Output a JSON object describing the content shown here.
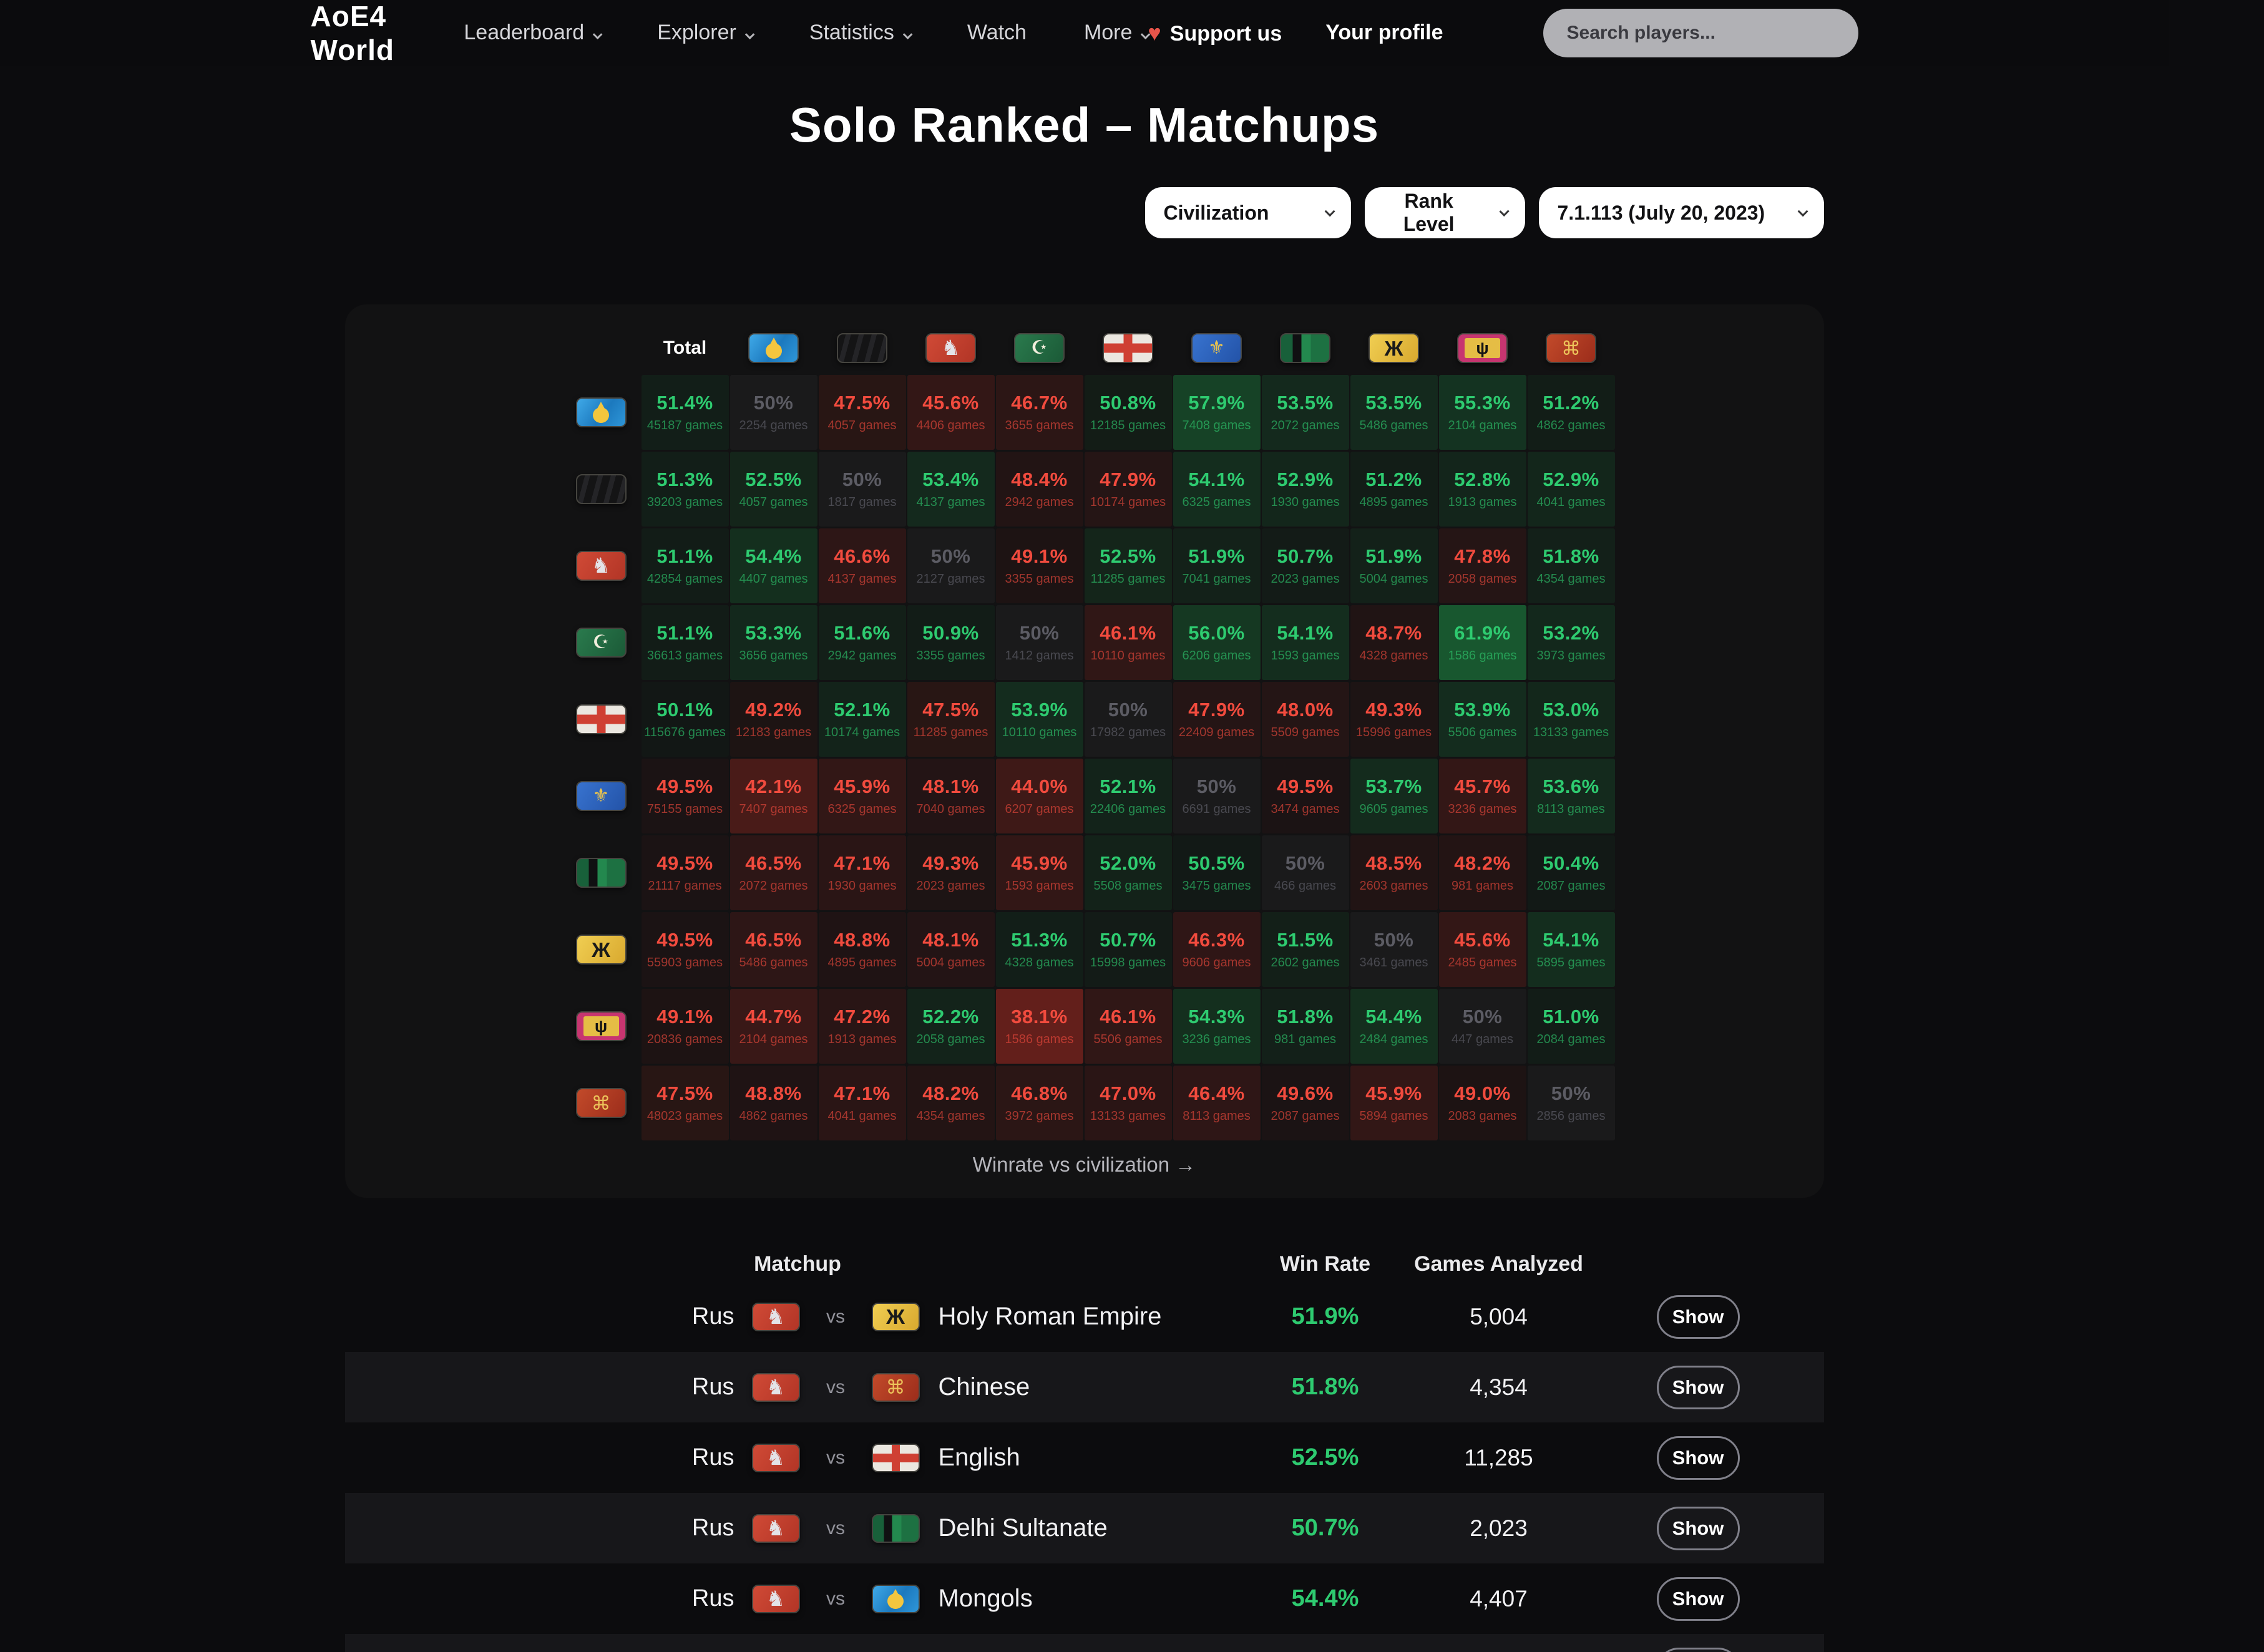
{
  "nav": {
    "brand": "AoE4 World",
    "items": [
      {
        "label": "Leaderboard",
        "caret": true
      },
      {
        "label": "Explorer",
        "caret": true
      },
      {
        "label": "Statistics",
        "caret": true
      },
      {
        "label": "Watch",
        "caret": false
      },
      {
        "label": "More",
        "caret": true
      }
    ],
    "support_label": "Support us",
    "profile_label": "Your profile",
    "search_placeholder": "Search players..."
  },
  "page": {
    "title": "Solo Ranked – Matchups"
  },
  "filters": [
    {
      "label": "Civilization"
    },
    {
      "label": "Rank Level"
    },
    {
      "label": "7.1.113 (July 20, 2023)"
    }
  ],
  "colors": {
    "green": "#2ecb70",
    "red": "#f14b3e",
    "neutral_gray": "#5c5c64"
  },
  "matrix": {
    "corner_label": "Total",
    "civs": [
      {
        "id": "mongols",
        "name": "Mongols"
      },
      {
        "id": "abbasid",
        "name": "Abbasid Dynasty"
      },
      {
        "id": "rus",
        "name": "Rus"
      },
      {
        "id": "ottomans",
        "name": "Ottomans"
      },
      {
        "id": "english",
        "name": "English"
      },
      {
        "id": "french",
        "name": "French"
      },
      {
        "id": "delhi",
        "name": "Delhi Sultanate"
      },
      {
        "id": "hre",
        "name": "Holy Roman Empire"
      },
      {
        "id": "malians",
        "name": "Malians"
      },
      {
        "id": "chinese",
        "name": "Chinese"
      }
    ],
    "rows": [
      {
        "civ": "mongols",
        "total": {
          "wr": "51.4%",
          "games": "45187 games"
        },
        "cells": [
          {
            "wr": "50%",
            "games": "2254 games"
          },
          {
            "wr": "47.5%",
            "games": "4057 games"
          },
          {
            "wr": "45.6%",
            "games": "4406 games"
          },
          {
            "wr": "46.7%",
            "games": "3655 games"
          },
          {
            "wr": "50.8%",
            "games": "12185 games"
          },
          {
            "wr": "57.9%",
            "games": "7408 games"
          },
          {
            "wr": "53.5%",
            "games": "2072 games"
          },
          {
            "wr": "53.5%",
            "games": "5486 games"
          },
          {
            "wr": "55.3%",
            "games": "2104 games"
          },
          {
            "wr": "51.2%",
            "games": "4862 games"
          }
        ]
      },
      {
        "civ": "abbasid",
        "total": {
          "wr": "51.3%",
          "games": "39203 games"
        },
        "cells": [
          {
            "wr": "52.5%",
            "games": "4057 games"
          },
          {
            "wr": "50%",
            "games": "1817 games"
          },
          {
            "wr": "53.4%",
            "games": "4137 games"
          },
          {
            "wr": "48.4%",
            "games": "2942 games"
          },
          {
            "wr": "47.9%",
            "games": "10174 games"
          },
          {
            "wr": "54.1%",
            "games": "6325 games"
          },
          {
            "wr": "52.9%",
            "games": "1930 games"
          },
          {
            "wr": "51.2%",
            "games": "4895 games"
          },
          {
            "wr": "52.8%",
            "games": "1913 games"
          },
          {
            "wr": "52.9%",
            "games": "4041 games"
          }
        ]
      },
      {
        "civ": "rus",
        "total": {
          "wr": "51.1%",
          "games": "42854 games"
        },
        "cells": [
          {
            "wr": "54.4%",
            "games": "4407 games"
          },
          {
            "wr": "46.6%",
            "games": "4137 games"
          },
          {
            "wr": "50%",
            "games": "2127 games"
          },
          {
            "wr": "49.1%",
            "games": "3355 games"
          },
          {
            "wr": "52.5%",
            "games": "11285 games"
          },
          {
            "wr": "51.9%",
            "games": "7041 games"
          },
          {
            "wr": "50.7%",
            "games": "2023 games"
          },
          {
            "wr": "51.9%",
            "games": "5004 games"
          },
          {
            "wr": "47.8%",
            "games": "2058 games"
          },
          {
            "wr": "51.8%",
            "games": "4354 games"
          }
        ]
      },
      {
        "civ": "ottomans",
        "total": {
          "wr": "51.1%",
          "games": "36613 games"
        },
        "cells": [
          {
            "wr": "53.3%",
            "games": "3656 games"
          },
          {
            "wr": "51.6%",
            "games": "2942 games"
          },
          {
            "wr": "50.9%",
            "games": "3355 games"
          },
          {
            "wr": "50%",
            "games": "1412 games"
          },
          {
            "wr": "46.1%",
            "games": "10110 games"
          },
          {
            "wr": "56.0%",
            "games": "6206 games"
          },
          {
            "wr": "54.1%",
            "games": "1593 games"
          },
          {
            "wr": "48.7%",
            "games": "4328 games"
          },
          {
            "wr": "61.9%",
            "games": "1586 games"
          },
          {
            "wr": "53.2%",
            "games": "3973 games"
          }
        ]
      },
      {
        "civ": "english",
        "total": {
          "wr": "50.1%",
          "games": "115676 games"
        },
        "cells": [
          {
            "wr": "49.2%",
            "games": "12183 games"
          },
          {
            "wr": "52.1%",
            "games": "10174 games"
          },
          {
            "wr": "47.5%",
            "games": "11285 games"
          },
          {
            "wr": "53.9%",
            "games": "10110 games"
          },
          {
            "wr": "50%",
            "games": "17982 games"
          },
          {
            "wr": "47.9%",
            "games": "22409 games"
          },
          {
            "wr": "48.0%",
            "games": "5509 games"
          },
          {
            "wr": "49.3%",
            "games": "15996 games"
          },
          {
            "wr": "53.9%",
            "games": "5506 games"
          },
          {
            "wr": "53.0%",
            "games": "13133 games"
          }
        ]
      },
      {
        "civ": "french",
        "total": {
          "wr": "49.5%",
          "games": "75155 games"
        },
        "cells": [
          {
            "wr": "42.1%",
            "games": "7407 games"
          },
          {
            "wr": "45.9%",
            "games": "6325 games"
          },
          {
            "wr": "48.1%",
            "games": "7040 games"
          },
          {
            "wr": "44.0%",
            "games": "6207 games"
          },
          {
            "wr": "52.1%",
            "games": "22406 games"
          },
          {
            "wr": "50%",
            "games": "6691 games"
          },
          {
            "wr": "49.5%",
            "games": "3474 games"
          },
          {
            "wr": "53.7%",
            "games": "9605 games"
          },
          {
            "wr": "45.7%",
            "games": "3236 games"
          },
          {
            "wr": "53.6%",
            "games": "8113 games"
          }
        ]
      },
      {
        "civ": "delhi",
        "total": {
          "wr": "49.5%",
          "games": "21117 games"
        },
        "cells": [
          {
            "wr": "46.5%",
            "games": "2072 games"
          },
          {
            "wr": "47.1%",
            "games": "1930 games"
          },
          {
            "wr": "49.3%",
            "games": "2023 games"
          },
          {
            "wr": "45.9%",
            "games": "1593 games"
          },
          {
            "wr": "52.0%",
            "games": "5508 games"
          },
          {
            "wr": "50.5%",
            "games": "3475 games"
          },
          {
            "wr": "50%",
            "games": "466 games"
          },
          {
            "wr": "48.5%",
            "games": "2603 games"
          },
          {
            "wr": "48.2%",
            "games": "981 games"
          },
          {
            "wr": "50.4%",
            "games": "2087 games"
          }
        ]
      },
      {
        "civ": "hre",
        "total": {
          "wr": "49.5%",
          "games": "55903 games"
        },
        "cells": [
          {
            "wr": "46.5%",
            "games": "5486 games"
          },
          {
            "wr": "48.8%",
            "games": "4895 games"
          },
          {
            "wr": "48.1%",
            "games": "5004 games"
          },
          {
            "wr": "51.3%",
            "games": "4328 games"
          },
          {
            "wr": "50.7%",
            "games": "15998 games"
          },
          {
            "wr": "46.3%",
            "games": "9606 games"
          },
          {
            "wr": "51.5%",
            "games": "2602 games"
          },
          {
            "wr": "50%",
            "games": "3461 games"
          },
          {
            "wr": "45.6%",
            "games": "2485 games"
          },
          {
            "wr": "54.1%",
            "games": "5895 games"
          }
        ]
      },
      {
        "civ": "malians",
        "total": {
          "wr": "49.1%",
          "games": "20836 games"
        },
        "cells": [
          {
            "wr": "44.7%",
            "games": "2104 games"
          },
          {
            "wr": "47.2%",
            "games": "1913 games"
          },
          {
            "wr": "52.2%",
            "games": "2058 games"
          },
          {
            "wr": "38.1%",
            "games": "1586 games"
          },
          {
            "wr": "46.1%",
            "games": "5506 games"
          },
          {
            "wr": "54.3%",
            "games": "3236 games"
          },
          {
            "wr": "51.8%",
            "games": "981 games"
          },
          {
            "wr": "54.4%",
            "games": "2484 games"
          },
          {
            "wr": "50%",
            "games": "447 games"
          },
          {
            "wr": "51.0%",
            "games": "2084 games"
          }
        ]
      },
      {
        "civ": "chinese",
        "total": {
          "wr": "47.5%",
          "games": "48023 games"
        },
        "cells": [
          {
            "wr": "48.8%",
            "games": "4862 games"
          },
          {
            "wr": "47.1%",
            "games": "4041 games"
          },
          {
            "wr": "48.2%",
            "games": "4354 games"
          },
          {
            "wr": "46.8%",
            "games": "3972 games"
          },
          {
            "wr": "47.0%",
            "games": "13133 games"
          },
          {
            "wr": "46.4%",
            "games": "8113 games"
          },
          {
            "wr": "49.6%",
            "games": "2087 games"
          },
          {
            "wr": "45.9%",
            "games": "5894 games"
          },
          {
            "wr": "49.0%",
            "games": "2083 games"
          },
          {
            "wr": "50%",
            "games": "2856 games"
          }
        ]
      }
    ],
    "footer_link": "Winrate vs civilization →"
  },
  "matchups": {
    "headers": {
      "matchup": "Matchup",
      "win_rate": "Win Rate",
      "games_analyzed": "Games Analyzed"
    },
    "left_civ": {
      "id": "rus",
      "name": "Rus"
    },
    "vs_label": "vs",
    "show_label": "Show",
    "rows": [
      {
        "opp_id": "hre",
        "opponent": "Holy Roman Empire",
        "win_rate": "51.9%",
        "games": "5,004"
      },
      {
        "opp_id": "chinese",
        "opponent": "Chinese",
        "win_rate": "51.8%",
        "games": "4,354"
      },
      {
        "opp_id": "english",
        "opponent": "English",
        "win_rate": "52.5%",
        "games": "11,285"
      },
      {
        "opp_id": "delhi",
        "opponent": "Delhi Sultanate",
        "win_rate": "50.7%",
        "games": "2,023"
      },
      {
        "opp_id": "mongols",
        "opponent": "Mongols",
        "win_rate": "54.4%",
        "games": "4,407"
      },
      {
        "opp_id": "abbasid",
        "opponent": "",
        "win_rate": "",
        "games": "",
        "partial": true
      }
    ]
  }
}
